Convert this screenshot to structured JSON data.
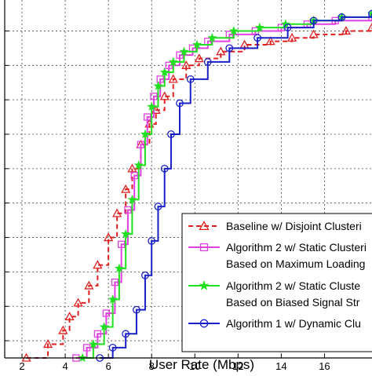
{
  "chart_data": {
    "type": "line",
    "xlabel": "User Rate (Mbps)",
    "ylabel": "",
    "title": "",
    "xlim": [
      1.2,
      18.2
    ],
    "ylim": [
      0,
      1.04
    ],
    "x_ticks": [
      2,
      4,
      6,
      8,
      10,
      12,
      14,
      16
    ],
    "y_gridlines": [
      0.05,
      0.15,
      0.25,
      0.35,
      0.45,
      0.55,
      0.65,
      0.75,
      0.85,
      0.95
    ],
    "grid": true,
    "legend_position": "bottom-right",
    "series": [
      {
        "name": "Baseline w/ Disjoint Clusteri",
        "color": "#e02020",
        "dash": true,
        "marker": "triangle",
        "x": [
          2.2,
          3.2,
          3.9,
          4.2,
          4.6,
          5.1,
          5.5,
          6.0,
          6.4,
          6.8,
          7.1,
          7.5,
          7.9,
          8.2,
          8.6,
          9.0,
          9.6,
          10.2,
          11.2,
          12.3,
          13.5,
          14.5,
          15.5,
          17.0,
          18.2
        ],
        "y": [
          0.0,
          0.04,
          0.08,
          0.12,
          0.16,
          0.21,
          0.27,
          0.35,
          0.42,
          0.49,
          0.55,
          0.62,
          0.68,
          0.72,
          0.76,
          0.81,
          0.85,
          0.87,
          0.89,
          0.91,
          0.92,
          0.93,
          0.94,
          0.95,
          0.96
        ]
      },
      {
        "name": "Algorithm 2 w/ Static Clusteri",
        "name_line2": "Based on Maximum Loading",
        "color": "#e040e0",
        "dash": false,
        "marker": "square",
        "x": [
          4.5,
          5.0,
          5.5,
          5.9,
          6.3,
          6.6,
          6.9,
          7.2,
          7.5,
          7.8,
          8.1,
          8.4,
          8.8,
          9.3,
          9.9,
          10.6,
          11.6,
          12.8,
          14.0,
          15.2,
          16.5,
          18.2
        ],
        "y": [
          0.0,
          0.03,
          0.07,
          0.13,
          0.22,
          0.33,
          0.43,
          0.53,
          0.62,
          0.7,
          0.76,
          0.81,
          0.85,
          0.88,
          0.9,
          0.92,
          0.94,
          0.95,
          0.96,
          0.97,
          0.98,
          0.99
        ]
      },
      {
        "name": "Algorithm 2 w/ Static Cluste",
        "name_line2": "Based on Biased Signal Str",
        "color": "#20e020",
        "dash": false,
        "marker": "star",
        "x": [
          4.8,
          5.3,
          5.8,
          6.2,
          6.5,
          6.8,
          7.1,
          7.4,
          7.7,
          8.0,
          8.3,
          8.6,
          9.0,
          9.5,
          10.1,
          10.8,
          11.8,
          13.0,
          14.2,
          15.5,
          16.8,
          18.2
        ],
        "y": [
          0.0,
          0.04,
          0.09,
          0.17,
          0.26,
          0.36,
          0.46,
          0.56,
          0.65,
          0.73,
          0.79,
          0.83,
          0.86,
          0.89,
          0.91,
          0.93,
          0.95,
          0.96,
          0.97,
          0.98,
          0.99,
          1.0
        ]
      },
      {
        "name": "Algorithm 1 w/ Dynamic Clu",
        "color": "#1a20c8",
        "dash": false,
        "marker": "circle",
        "x": [
          5.6,
          6.2,
          6.8,
          7.3,
          7.7,
          8.0,
          8.3,
          8.6,
          8.9,
          9.3,
          9.8,
          10.6,
          11.6,
          12.9,
          14.3,
          15.5,
          16.8,
          18.2
        ],
        "y": [
          0.0,
          0.03,
          0.07,
          0.14,
          0.24,
          0.34,
          0.44,
          0.55,
          0.65,
          0.74,
          0.81,
          0.86,
          0.9,
          0.93,
          0.96,
          0.98,
          0.99,
          1.0
        ]
      }
    ]
  }
}
